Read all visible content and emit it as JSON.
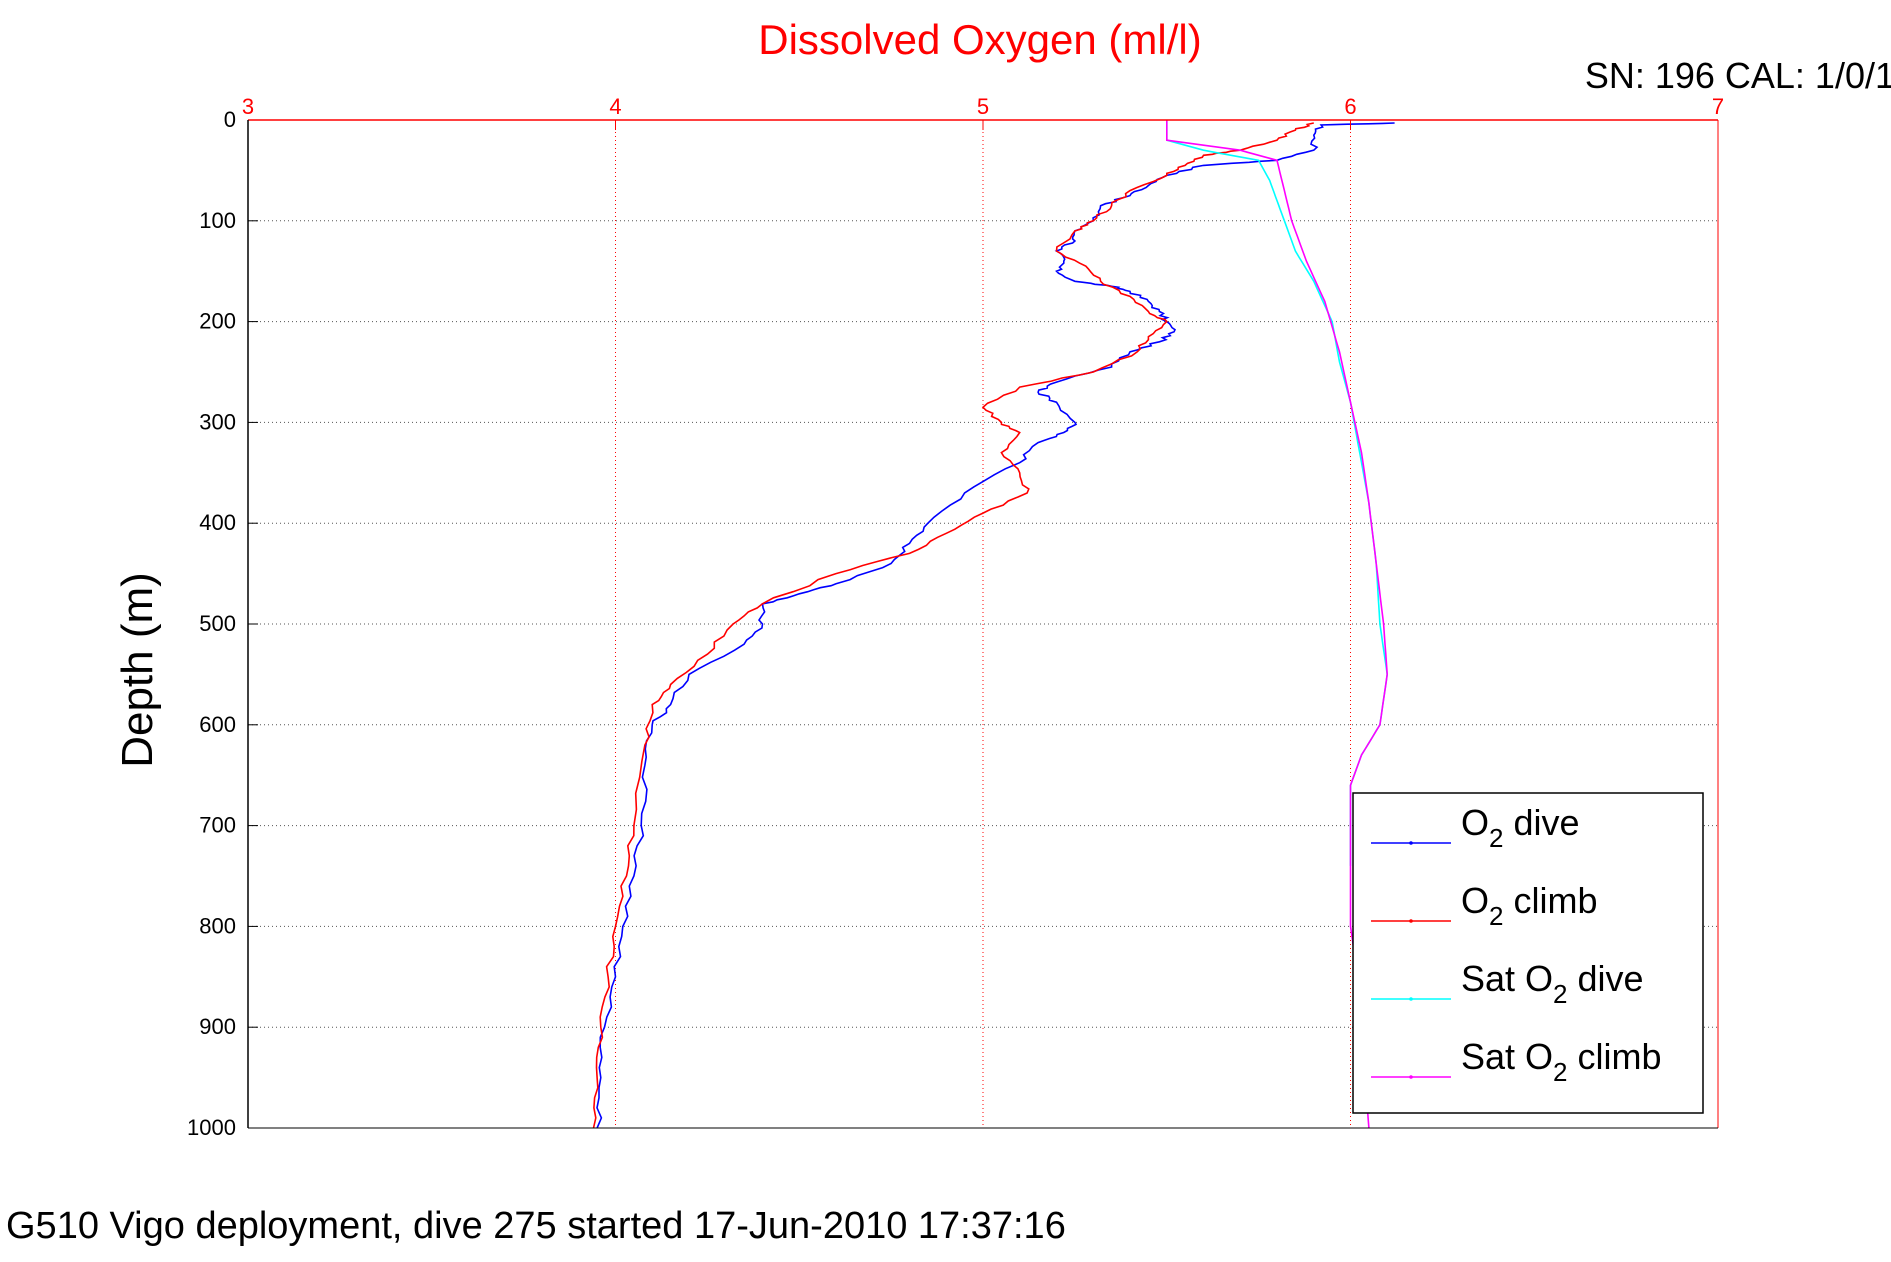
{
  "figure": {
    "serial_label": "SN: 196  CAL: 1/0/1",
    "footer_caption": "G510 Vigo deployment, dive 275 started 17-Jun-2010 17:37:16"
  },
  "chart_data": {
    "type": "line",
    "title": "Dissolved Oxygen (ml/l)",
    "xlabel": "",
    "ylabel": "Depth (m)",
    "xlim": [
      3,
      7
    ],
    "ylim": [
      0,
      1000
    ],
    "y_inverted": true,
    "x_axis_position": "top",
    "xticks": [
      3,
      4,
      5,
      6,
      7
    ],
    "yticks": [
      0,
      100,
      200,
      300,
      400,
      500,
      600,
      700,
      800,
      900,
      1000
    ],
    "grid": true,
    "legend_position": "lower-right",
    "colors": {
      "title": "#ff0000",
      "x_axis": "#ff0000",
      "grid_x": "#ff0000",
      "grid_y": "#555555"
    },
    "series": [
      {
        "name": "O2 dive",
        "legend_main": "O",
        "legend_sub": "2",
        "legend_rest": " dive",
        "color": "#0000ff",
        "points": [
          [
            6.12,
            3
          ],
          [
            5.92,
            5
          ],
          [
            5.9,
            15
          ],
          [
            5.9,
            30
          ],
          [
            5.8,
            40
          ],
          [
            5.6,
            45
          ],
          [
            5.5,
            55
          ],
          [
            5.45,
            65
          ],
          [
            5.4,
            75
          ],
          [
            5.32,
            85
          ],
          [
            5.3,
            100
          ],
          [
            5.25,
            110
          ],
          [
            5.25,
            120
          ],
          [
            5.2,
            130
          ],
          [
            5.22,
            140
          ],
          [
            5.2,
            150
          ],
          [
            5.25,
            160
          ],
          [
            5.35,
            165
          ],
          [
            5.4,
            170
          ],
          [
            5.45,
            180
          ],
          [
            5.48,
            190
          ],
          [
            5.5,
            200
          ],
          [
            5.52,
            210
          ],
          [
            5.48,
            220
          ],
          [
            5.4,
            230
          ],
          [
            5.35,
            245
          ],
          [
            5.2,
            260
          ],
          [
            5.15,
            270
          ],
          [
            5.2,
            280
          ],
          [
            5.25,
            300
          ],
          [
            5.22,
            310
          ],
          [
            5.15,
            320
          ],
          [
            5.1,
            340
          ],
          [
            4.95,
            370
          ],
          [
            4.85,
            400
          ],
          [
            4.8,
            420
          ],
          [
            4.75,
            440
          ],
          [
            4.6,
            460
          ],
          [
            4.5,
            470
          ],
          [
            4.4,
            480
          ],
          [
            4.4,
            500
          ],
          [
            4.35,
            520
          ],
          [
            4.2,
            550
          ],
          [
            4.15,
            580
          ],
          [
            4.1,
            600
          ],
          [
            4.08,
            640
          ],
          [
            4.07,
            700
          ],
          [
            4.05,
            750
          ],
          [
            4.02,
            800
          ],
          [
            4.0,
            850
          ],
          [
            3.97,
            900
          ],
          [
            3.96,
            950
          ],
          [
            3.95,
            1000
          ]
        ]
      },
      {
        "name": "O2 climb",
        "legend_main": "O",
        "legend_sub": "2",
        "legend_rest": " climb",
        "color": "#ff0000",
        "points": [
          [
            5.9,
            3
          ],
          [
            5.85,
            10
          ],
          [
            5.8,
            20
          ],
          [
            5.7,
            30
          ],
          [
            5.6,
            35
          ],
          [
            5.55,
            45
          ],
          [
            5.5,
            55
          ],
          [
            5.4,
            70
          ],
          [
            5.35,
            85
          ],
          [
            5.3,
            100
          ],
          [
            5.25,
            110
          ],
          [
            5.2,
            130
          ],
          [
            5.28,
            145
          ],
          [
            5.32,
            160
          ],
          [
            5.4,
            175
          ],
          [
            5.45,
            190
          ],
          [
            5.5,
            200
          ],
          [
            5.45,
            215
          ],
          [
            5.42,
            230
          ],
          [
            5.3,
            250
          ],
          [
            5.1,
            265
          ],
          [
            5.0,
            285
          ],
          [
            5.05,
            300
          ],
          [
            5.1,
            310
          ],
          [
            5.05,
            330
          ],
          [
            5.1,
            350
          ],
          [
            5.12,
            370
          ],
          [
            5.0,
            390
          ],
          [
            4.9,
            410
          ],
          [
            4.8,
            430
          ],
          [
            4.6,
            450
          ],
          [
            4.4,
            480
          ],
          [
            4.32,
            500
          ],
          [
            4.25,
            530
          ],
          [
            4.15,
            560
          ],
          [
            4.1,
            580
          ],
          [
            4.08,
            620
          ],
          [
            4.05,
            700
          ],
          [
            4.03,
            750
          ],
          [
            4.0,
            800
          ],
          [
            3.98,
            850
          ],
          [
            3.96,
            900
          ],
          [
            3.95,
            950
          ],
          [
            3.94,
            1000
          ]
        ]
      },
      {
        "name": "Sat O2 dive",
        "legend_main": "Sat O",
        "legend_sub": "2",
        "legend_rest": " dive",
        "color": "#00ffff",
        "points": [
          [
            5.5,
            0
          ],
          [
            5.5,
            20
          ],
          [
            5.6,
            30
          ],
          [
            5.75,
            40
          ],
          [
            5.78,
            60
          ],
          [
            5.8,
            80
          ],
          [
            5.82,
            100
          ],
          [
            5.85,
            130
          ],
          [
            5.9,
            160
          ],
          [
            5.95,
            200
          ],
          [
            5.97,
            240
          ],
          [
            6.0,
            280
          ],
          [
            6.02,
            320
          ],
          [
            6.05,
            380
          ],
          [
            6.07,
            440
          ],
          [
            6.08,
            500
          ],
          [
            6.1,
            550
          ],
          [
            6.08,
            600
          ],
          [
            6.03,
            630
          ],
          [
            6.0,
            660
          ],
          [
            6.0,
            700
          ],
          [
            6.0,
            740
          ]
        ]
      },
      {
        "name": "Sat O2 climb",
        "legend_main": "Sat O",
        "legend_sub": "2",
        "legend_rest": " climb",
        "color": "#ff00ff",
        "points": [
          [
            5.5,
            0
          ],
          [
            5.5,
            20
          ],
          [
            5.6,
            25
          ],
          [
            5.7,
            30
          ],
          [
            5.8,
            40
          ],
          [
            5.82,
            70
          ],
          [
            5.84,
            100
          ],
          [
            5.88,
            140
          ],
          [
            5.93,
            180
          ],
          [
            5.97,
            230
          ],
          [
            6.0,
            280
          ],
          [
            6.03,
            330
          ],
          [
            6.05,
            380
          ],
          [
            6.07,
            440
          ],
          [
            6.09,
            500
          ],
          [
            6.1,
            550
          ],
          [
            6.08,
            600
          ],
          [
            6.03,
            630
          ],
          [
            6.0,
            660
          ],
          [
            6.0,
            700
          ],
          [
            6.0,
            740
          ],
          [
            6.0,
            800
          ],
          [
            6.02,
            850
          ],
          [
            6.03,
            900
          ],
          [
            6.04,
            950
          ],
          [
            6.05,
            1000
          ]
        ]
      }
    ]
  }
}
